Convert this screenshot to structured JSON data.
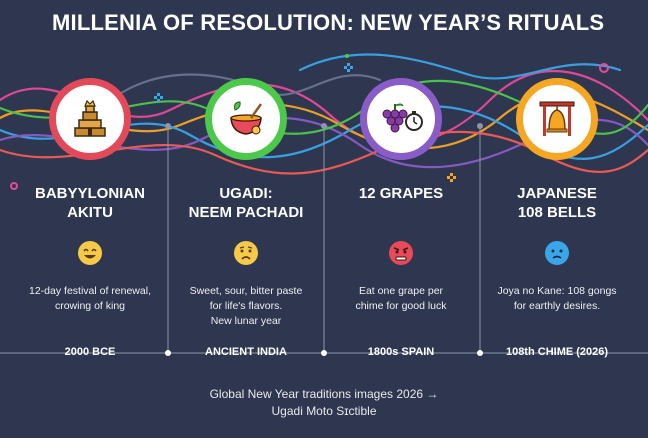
{
  "title": "MILLENIA OF RESOLUTION: NEW YEAR’S RITUALS",
  "colors": {
    "background": "#2e3650",
    "ring_red": "#e24a5a",
    "ring_green": "#4cc94a",
    "ring_purple": "#8a5cc7",
    "ring_orange": "#f5a623",
    "emoji_yellow": "#f7c948",
    "emoji_red": "#e84a5a",
    "emoji_blue": "#3aa6e8"
  },
  "columns": [
    {
      "heading_line1": "BABYYLONIAN",
      "heading_line2": "AKITU",
      "icon": "ziggurat-icon",
      "emoji": "happy-face-icon",
      "desc_line1": "12-day festival of renewal,",
      "desc_line2": "crowing of king",
      "desc_line3": "",
      "timeline": "2000 BCE"
    },
    {
      "heading_line1": "UGADI:",
      "heading_line2": "NEEM PACHADI",
      "icon": "bowl-icon",
      "emoji": "worried-face-icon",
      "desc_line1": "Sweet, sour, bitter paste",
      "desc_line2": "for life's flavors.",
      "desc_line3": "New lunar year",
      "timeline": "ANCIENT INDIA"
    },
    {
      "heading_line1": "12 GRAPES",
      "heading_line2": "",
      "icon": "grapes-clock-icon",
      "emoji": "angry-face-icon",
      "desc_line1": "Eat one grape per",
      "desc_line2": "chime for good luck",
      "desc_line3": "",
      "timeline": "1800s SPAIN"
    },
    {
      "heading_line1": "JAPANESE",
      "heading_line2": "108 BELLS",
      "icon": "bell-icon",
      "emoji": "sad-face-icon",
      "desc_line1": "Joya no Kane: 108 gongs",
      "desc_line2": "for earthly desires.",
      "desc_line3": "",
      "timeline": "108th CHIME (2026)"
    }
  ],
  "footer": {
    "line1": "Global New Year traditions images 2026 →",
    "line2": "Ugadi Moto Sɪctible"
  }
}
